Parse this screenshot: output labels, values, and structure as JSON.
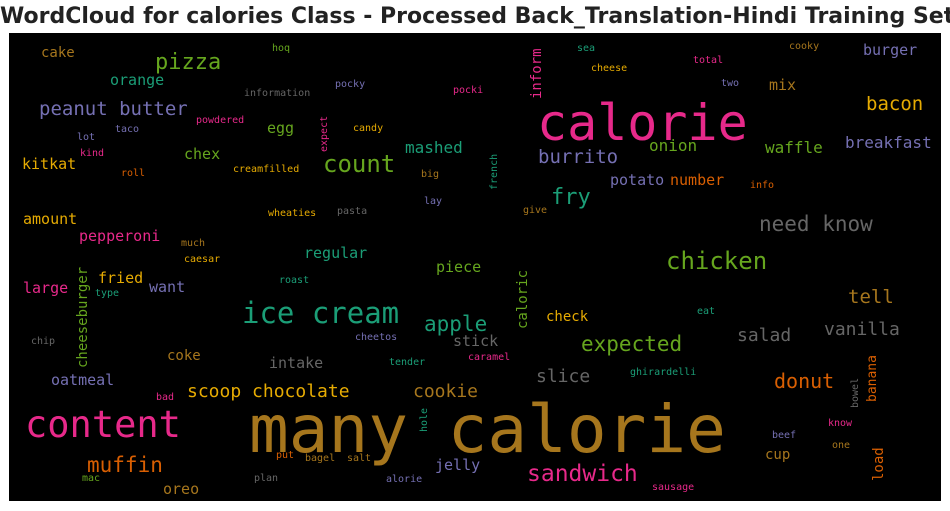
{
  "chart_data": {
    "type": "wordcloud",
    "title": "WordCloud for calories Class - Processed Back_Translation-Hindi Training Set",
    "background": "#000000",
    "words": [
      {
        "text": "many calorie",
        "color": "#a6761d"
      },
      {
        "text": "calorie",
        "color": "#e7298a"
      },
      {
        "text": "content",
        "color": "#e7298a"
      },
      {
        "text": "ice cream",
        "color": "#1b9e77"
      },
      {
        "text": "count",
        "color": "#66a61e"
      },
      {
        "text": "chicken",
        "color": "#66a61e"
      },
      {
        "text": "sandwich",
        "color": "#e7298a"
      },
      {
        "text": "pizza",
        "color": "#66a61e"
      },
      {
        "text": "muffin",
        "color": "#d95f02"
      },
      {
        "text": "fry",
        "color": "#1b9e77"
      },
      {
        "text": "peanut butter",
        "color": "#7570b3"
      },
      {
        "text": "expected",
        "color": "#66a61e"
      },
      {
        "text": "apple",
        "color": "#1b9e77"
      },
      {
        "text": "scoop chocolate",
        "color": "#e6ab02"
      },
      {
        "text": "cookie",
        "color": "#a6761d"
      },
      {
        "text": "donut",
        "color": "#d95f02"
      },
      {
        "text": "need know",
        "color": "#666666"
      },
      {
        "text": "bacon",
        "color": "#e6ab02"
      },
      {
        "text": "burrito",
        "color": "#7570b3"
      },
      {
        "text": "tell",
        "color": "#a6761d"
      },
      {
        "text": "vanilla",
        "color": "#666666"
      },
      {
        "text": "salad",
        "color": "#666666"
      },
      {
        "text": "slice",
        "color": "#666666"
      },
      {
        "text": "mashed",
        "color": "#1b9e77"
      },
      {
        "text": "onion",
        "color": "#66a61e"
      },
      {
        "text": "waffle",
        "color": "#66a61e"
      },
      {
        "text": "breakfast",
        "color": "#7570b3"
      },
      {
        "text": "burger",
        "color": "#7570b3"
      },
      {
        "text": "orange",
        "color": "#1b9e77"
      },
      {
        "text": "cake",
        "color": "#a6761d"
      },
      {
        "text": "mix",
        "color": "#a6761d"
      },
      {
        "text": "egg",
        "color": "#66a61e"
      },
      {
        "text": "chex",
        "color": "#66a61e"
      },
      {
        "text": "kitkat",
        "color": "#e6ab02"
      },
      {
        "text": "potato",
        "color": "#7570b3"
      },
      {
        "text": "number",
        "color": "#d95f02"
      },
      {
        "text": "amount",
        "color": "#e6ab02"
      },
      {
        "text": "pepperoni",
        "color": "#e7298a"
      },
      {
        "text": "regular",
        "color": "#1b9e77"
      },
      {
        "text": "piece",
        "color": "#66a61e"
      },
      {
        "text": "large",
        "color": "#e7298a"
      },
      {
        "text": "fried",
        "color": "#e6ab02"
      },
      {
        "text": "want",
        "color": "#7570b3"
      },
      {
        "text": "check",
        "color": "#e6ab02"
      },
      {
        "text": "stick",
        "color": "#666666"
      },
      {
        "text": "coke",
        "color": "#a6761d"
      },
      {
        "text": "intake",
        "color": "#666666"
      },
      {
        "text": "oatmeal",
        "color": "#7570b3"
      },
      {
        "text": "jelly",
        "color": "#7570b3"
      },
      {
        "text": "cup",
        "color": "#a6761d"
      },
      {
        "text": "oreo",
        "color": "#a6761d"
      },
      {
        "text": "cheeseburger",
        "color": "#66a61e"
      },
      {
        "text": "caloric",
        "color": "#66a61e"
      },
      {
        "text": "inform",
        "color": "#e7298a"
      },
      {
        "text": "banana",
        "color": "#d95f02"
      },
      {
        "text": "load",
        "color": "#d95f02"
      },
      {
        "text": "hoq",
        "color": "#66a61e"
      },
      {
        "text": "information",
        "color": "#666666"
      },
      {
        "text": "pocky",
        "color": "#7570b3"
      },
      {
        "text": "pocki",
        "color": "#e7298a"
      },
      {
        "text": "sea",
        "color": "#1b9e77"
      },
      {
        "text": "cheese",
        "color": "#e6ab02"
      },
      {
        "text": "total",
        "color": "#e7298a"
      },
      {
        "text": "cooky",
        "color": "#a6761d"
      },
      {
        "text": "two",
        "color": "#7570b3"
      },
      {
        "text": "lot",
        "color": "#7570b3"
      },
      {
        "text": "taco",
        "color": "#7570b3"
      },
      {
        "text": "powdered",
        "color": "#e7298a"
      },
      {
        "text": "kind",
        "color": "#e7298a"
      },
      {
        "text": "roll",
        "color": "#d95f02"
      },
      {
        "text": "creamfilled",
        "color": "#e6ab02"
      },
      {
        "text": "expect",
        "color": "#e7298a"
      },
      {
        "text": "candy",
        "color": "#e6ab02"
      },
      {
        "text": "big",
        "color": "#a6761d"
      },
      {
        "text": "french",
        "color": "#1b9e77"
      },
      {
        "text": "info",
        "color": "#d95f02"
      },
      {
        "text": "wheaties",
        "color": "#e6ab02"
      },
      {
        "text": "pasta",
        "color": "#666666"
      },
      {
        "text": "lay",
        "color": "#7570b3"
      },
      {
        "text": "give",
        "color": "#a6761d"
      },
      {
        "text": "much",
        "color": "#a6761d"
      },
      {
        "text": "caesar",
        "color": "#e6ab02"
      },
      {
        "text": "roast",
        "color": "#1b9e77"
      },
      {
        "text": "type",
        "color": "#1b9e77"
      },
      {
        "text": "chip",
        "color": "#666666"
      },
      {
        "text": "cheetos",
        "color": "#7570b3"
      },
      {
        "text": "tender",
        "color": "#1b9e77"
      },
      {
        "text": "caramel",
        "color": "#e7298a"
      },
      {
        "text": "eat",
        "color": "#1b9e77"
      },
      {
        "text": "ghirardelli",
        "color": "#1b9e77"
      },
      {
        "text": "bowel",
        "color": "#666666"
      },
      {
        "text": "bad",
        "color": "#e7298a"
      },
      {
        "text": "hole",
        "color": "#1b9e77"
      },
      {
        "text": "know",
        "color": "#e7298a"
      },
      {
        "text": "beef",
        "color": "#7570b3"
      },
      {
        "text": "one",
        "color": "#a6761d"
      },
      {
        "text": "put",
        "color": "#d95f02"
      },
      {
        "text": "bagel",
        "color": "#a6761d"
      },
      {
        "text": "salt",
        "color": "#a6761d"
      },
      {
        "text": "mac",
        "color": "#66a61e"
      },
      {
        "text": "plan",
        "color": "#666666"
      },
      {
        "text": "alorie",
        "color": "#7570b3"
      },
      {
        "text": "sausage",
        "color": "#e7298a"
      }
    ]
  }
}
